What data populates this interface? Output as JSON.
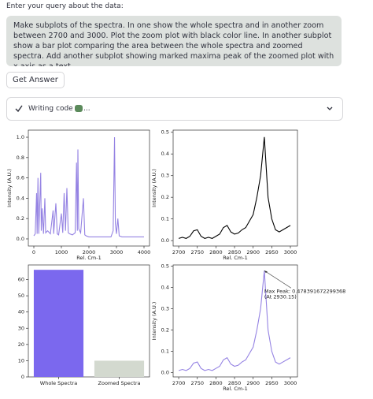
{
  "prompt_label": "Enter your query about the data:",
  "query": "Make subplots of the spectra. In one show the whole spectra and in another zoom between 2700 and 3000. Plot the zoom plot with black color line. In another subplot show a bar plot comparing the area between the whole spectra and zoomed spectra. Add another subplot showing marked maxima peak of the zoomed plot with x axis as a text",
  "button": "Get Answer",
  "status": "Writing code",
  "status_suffix": "...",
  "chart_data": [
    {
      "type": "line",
      "xlabel": "Rel. Cm-1",
      "ylabel": "Intensity (A.U.)",
      "color": "#9583e3",
      "x": [
        0,
        50,
        100,
        120,
        150,
        180,
        250,
        270,
        300,
        350,
        400,
        430,
        500,
        600,
        700,
        720,
        800,
        850,
        900,
        1000,
        1050,
        1100,
        1150,
        1200,
        1250,
        1300,
        1400,
        1500,
        1550,
        1580,
        1600,
        1630,
        1700,
        1800,
        1850,
        1900,
        2000,
        2200,
        2500,
        2800,
        2880,
        2930,
        2960,
        3000,
        3050,
        3100,
        3200,
        3500,
        4000
      ],
      "values": [
        0.03,
        0.05,
        0.45,
        0.05,
        0.6,
        0.05,
        0.65,
        0.08,
        0.3,
        0.05,
        0.4,
        0.06,
        0.08,
        0.05,
        0.28,
        0.05,
        0.35,
        0.05,
        0.04,
        0.25,
        0.06,
        0.45,
        0.08,
        0.5,
        0.06,
        0.05,
        0.04,
        0.06,
        0.75,
        0.08,
        0.88,
        0.1,
        0.06,
        0.4,
        0.04,
        0.03,
        0.02,
        0.02,
        0.02,
        0.02,
        0.08,
        1.0,
        0.15,
        0.05,
        0.2,
        0.03,
        0.02,
        0.02,
        0.02
      ],
      "xlim": [
        -200,
        4200
      ],
      "xticks": [
        0,
        1000,
        2000,
        3000,
        4000
      ],
      "ylim": [
        -0.07,
        1.07
      ],
      "yticks": [
        {
          "value": 0,
          "label": "0.0"
        },
        {
          "value": 0.2,
          "label": "0.2"
        },
        {
          "value": 0.4,
          "label": "0.4"
        },
        {
          "value": 0.6,
          "label": "0.6"
        },
        {
          "value": 0.8,
          "label": "0.8"
        },
        {
          "value": 1,
          "label": "1.0"
        }
      ]
    },
    {
      "type": "line",
      "xlabel": "Rel. Cm-1",
      "ylabel": "Intensity (A.U.)",
      "color": "#000000",
      "x": [
        2700,
        2710,
        2720,
        2730,
        2740,
        2750,
        2760,
        2770,
        2780,
        2790,
        2800,
        2810,
        2820,
        2830,
        2840,
        2850,
        2860,
        2870,
        2880,
        2890,
        2900,
        2910,
        2920,
        2930,
        2940,
        2950,
        2960,
        2970,
        2980,
        2990,
        3000
      ],
      "values": [
        0.01,
        0.015,
        0.01,
        0.02,
        0.045,
        0.05,
        0.02,
        0.01,
        0.015,
        0.01,
        0.02,
        0.03,
        0.06,
        0.07,
        0.04,
        0.03,
        0.035,
        0.05,
        0.06,
        0.09,
        0.12,
        0.2,
        0.3,
        0.478,
        0.2,
        0.1,
        0.05,
        0.04,
        0.05,
        0.06,
        0.07
      ],
      "xlim": [
        2685,
        3019
      ],
      "xticks": [
        2700,
        2750,
        2800,
        2850,
        2900,
        2950,
        3000
      ],
      "ylim": [
        -0.025,
        0.51
      ],
      "yticks": [
        {
          "value": 0,
          "label": "0.0"
        },
        {
          "value": 0.1,
          "label": "0.1"
        },
        {
          "value": 0.2,
          "label": "0.2"
        },
        {
          "value": 0.3,
          "label": "0.3"
        },
        {
          "value": 0.4,
          "label": "0.4"
        },
        {
          "value": 0.5,
          "label": "0.5"
        }
      ]
    },
    {
      "type": "bar",
      "categories": [
        "Whole Spectra",
        "Zoomed Spectra"
      ],
      "values": [
        66,
        10
      ],
      "colors": [
        "#7b68ee",
        "#d3d9cf"
      ],
      "ylim": [
        0,
        69
      ],
      "yticks": [
        0,
        10,
        20,
        30,
        40,
        50,
        60
      ]
    },
    {
      "type": "line",
      "xlabel": "Rel. Cm-1",
      "ylabel": "Intensity (A.U.)",
      "color": "#9583e3",
      "x": [
        2700,
        2710,
        2720,
        2730,
        2740,
        2750,
        2760,
        2770,
        2780,
        2790,
        2800,
        2810,
        2820,
        2830,
        2840,
        2850,
        2860,
        2870,
        2880,
        2890,
        2900,
        2910,
        2920,
        2930,
        2940,
        2950,
        2960,
        2970,
        2980,
        2990,
        3000
      ],
      "values": [
        0.01,
        0.015,
        0.01,
        0.02,
        0.045,
        0.05,
        0.02,
        0.01,
        0.015,
        0.01,
        0.02,
        0.03,
        0.06,
        0.07,
        0.04,
        0.03,
        0.035,
        0.05,
        0.06,
        0.09,
        0.12,
        0.2,
        0.3,
        0.478,
        0.2,
        0.1,
        0.05,
        0.04,
        0.05,
        0.06,
        0.07
      ],
      "xlim": [
        2685,
        3019
      ],
      "xticks": [
        2700,
        2750,
        2800,
        2850,
        2900,
        2950,
        3000
      ],
      "ylim": [
        -0.02,
        0.505
      ],
      "yticks": [
        {
          "value": 0,
          "label": "0.0"
        },
        {
          "value": 0.1,
          "label": "0.1"
        },
        {
          "value": 0.2,
          "label": "0.2"
        },
        {
          "value": 0.3,
          "label": "0.3"
        },
        {
          "value": 0.4,
          "label": "0.4"
        },
        {
          "value": 0.5,
          "label": "0.5"
        }
      ],
      "annotation": [
        "Max Peak: 0.478391672299368",
        "(At 2930.15)"
      ]
    }
  ]
}
